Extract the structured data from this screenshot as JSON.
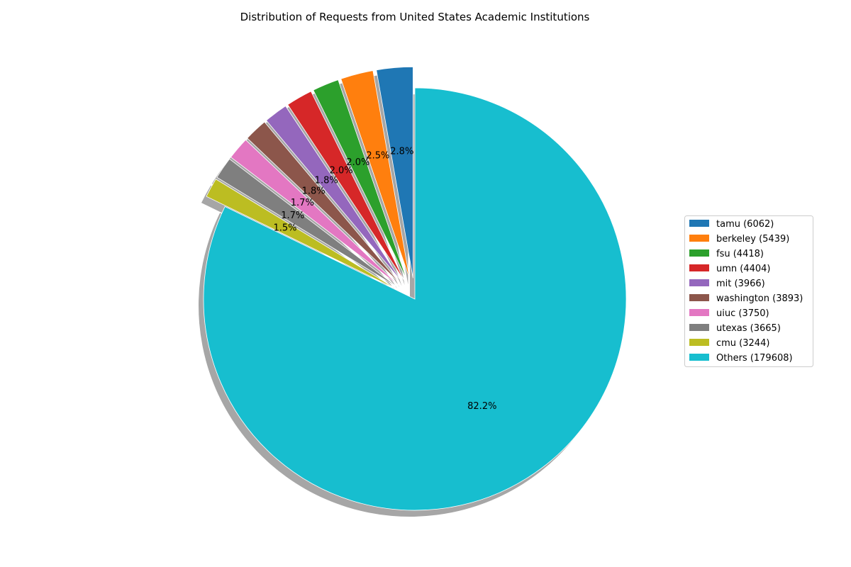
{
  "chart_data": {
    "type": "pie",
    "title": "Distribution of Requests from United States Academic Institutions",
    "legend_position": "right",
    "shadow": true,
    "start_angle_deg": 90,
    "direction": "counterclockwise",
    "slices": [
      {
        "label": "tamu",
        "value": 6062,
        "legend": "tamu (6062)",
        "pct_label": "2.8%",
        "color": "#1f77b4"
      },
      {
        "label": "berkeley",
        "value": 5439,
        "legend": "berkeley (5439)",
        "pct_label": "2.5%",
        "color": "#ff7f0e"
      },
      {
        "label": "fsu",
        "value": 4418,
        "legend": "fsu (4418)",
        "pct_label": "2.0%",
        "color": "#2ca02c"
      },
      {
        "label": "umn",
        "value": 4404,
        "legend": "umn (4404)",
        "pct_label": "2.0%",
        "color": "#d62728"
      },
      {
        "label": "mit",
        "value": 3966,
        "legend": "mit (3966)",
        "pct_label": "1.8%",
        "color": "#9467bd"
      },
      {
        "label": "washington",
        "value": 3893,
        "legend": "washington (3893)",
        "pct_label": "1.8%",
        "color": "#8c564b"
      },
      {
        "label": "uiuc",
        "value": 3750,
        "legend": "uiuc (3750)",
        "pct_label": "1.7%",
        "color": "#e377c2"
      },
      {
        "label": "utexas",
        "value": 3665,
        "legend": "utexas (3665)",
        "pct_label": "1.7%",
        "color": "#7f7f7f"
      },
      {
        "label": "cmu",
        "value": 3244,
        "legend": "cmu (3244)",
        "pct_label": "1.5%",
        "color": "#bcbd22"
      },
      {
        "label": "Others",
        "value": 179608,
        "legend": "Others (179608)",
        "pct_label": "82.2%",
        "color": "#17becf"
      }
    ]
  }
}
